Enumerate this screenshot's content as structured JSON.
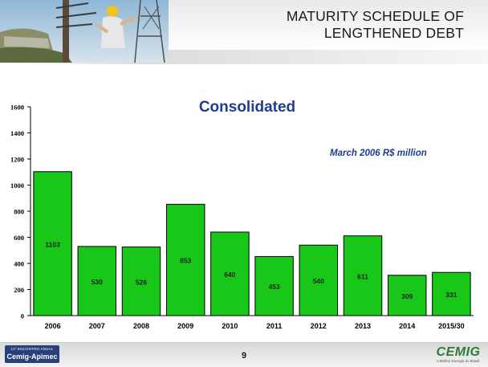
{
  "header": {
    "title_line1": "MATURITY SCHEDULE OF",
    "title_line2": "LENGTHENED DEBT"
  },
  "chart_note": "March 2006 R$ million",
  "chart_data": {
    "type": "bar",
    "title": "Consolidated",
    "categories": [
      "2006",
      "2007",
      "2008",
      "2009",
      "2010",
      "2011",
      "2012",
      "2013",
      "2014",
      "2015/30"
    ],
    "values": [
      1103,
      530,
      526,
      853,
      640,
      453,
      540,
      611,
      309,
      331
    ],
    "data_labels": [
      "1103",
      "530",
      "526",
      "853",
      "640",
      "453",
      "540",
      "611",
      "309",
      "331"
    ],
    "yticks": [
      "0",
      "200",
      "400",
      "600",
      "800",
      "1000",
      "1200",
      "1400",
      "1600"
    ],
    "ylim": [
      0,
      1600
    ],
    "xlabel": "",
    "ylabel": "",
    "grid": false,
    "bar_color": "#18c718"
  },
  "footer": {
    "event_small": "11º ENCONTRO ANUAL",
    "event_name": "Cemig-Apimec",
    "page_number": "9",
    "logo_text": "CEMIG",
    "logo_tagline": "A Melhor Energia do Brasil."
  }
}
